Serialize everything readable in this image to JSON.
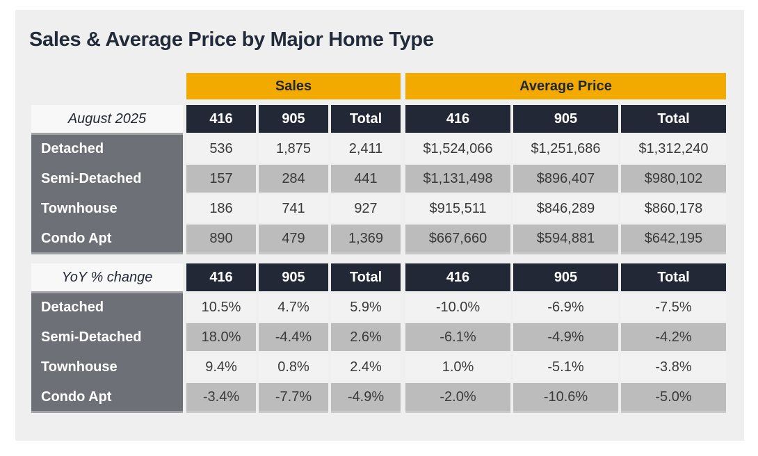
{
  "chart_data": {
    "type": "table",
    "title": "Sales & Average Price by Major Home Type",
    "column_groups": [
      "Sales",
      "Average Price"
    ],
    "sub_columns": [
      "416",
      "905",
      "Total"
    ],
    "colors": {
      "accent_yellow": "#F2A900",
      "header_navy": "#232836",
      "row_label_gray": "#6D7177",
      "row_light": "#F2F2F2",
      "row_dark": "#BCBCBC",
      "panel_background": "#EFEFEF",
      "title_text": "#222B3A"
    },
    "sections": [
      {
        "label": "August 2025",
        "rows": [
          {
            "name": "Detached",
            "sales": [
              "536",
              "1,875",
              "2,411"
            ],
            "avg_price": [
              "$1,524,066",
              "$1,251,686",
              "$1,312,240"
            ]
          },
          {
            "name": "Semi-Detached",
            "sales": [
              "157",
              "284",
              "441"
            ],
            "avg_price": [
              "$1,131,498",
              "$896,407",
              "$980,102"
            ]
          },
          {
            "name": "Townhouse",
            "sales": [
              "186",
              "741",
              "927"
            ],
            "avg_price": [
              "$915,511",
              "$846,289",
              "$860,178"
            ]
          },
          {
            "name": "Condo Apt",
            "sales": [
              "890",
              "479",
              "1,369"
            ],
            "avg_price": [
              "$667,660",
              "$594,881",
              "$642,195"
            ]
          }
        ]
      },
      {
        "label": "YoY % change",
        "rows": [
          {
            "name": "Detached",
            "sales": [
              "10.5%",
              "4.7%",
              "5.9%"
            ],
            "avg_price": [
              "-10.0%",
              "-6.9%",
              "-7.5%"
            ]
          },
          {
            "name": "Semi-Detached",
            "sales": [
              "18.0%",
              "-4.4%",
              "2.6%"
            ],
            "avg_price": [
              "-6.1%",
              "-4.9%",
              "-4.2%"
            ]
          },
          {
            "name": "Townhouse",
            "sales": [
              "9.4%",
              "0.8%",
              "2.4%"
            ],
            "avg_price": [
              "1.0%",
              "-5.1%",
              "-3.8%"
            ]
          },
          {
            "name": "Condo Apt",
            "sales": [
              "-3.4%",
              "-7.7%",
              "-4.9%"
            ],
            "avg_price": [
              "-2.0%",
              "-10.6%",
              "-5.0%"
            ]
          }
        ]
      }
    ]
  }
}
